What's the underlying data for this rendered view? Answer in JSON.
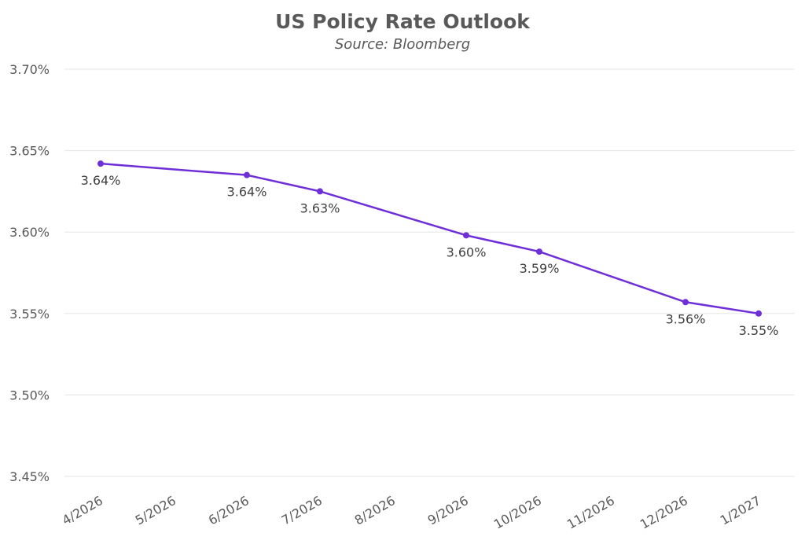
{
  "chart_data": {
    "type": "line",
    "title": "US Policy Rate Outlook",
    "subtitle": "Source: Bloomberg",
    "xlabel": "",
    "ylabel": "",
    "categories": [
      "4/2026",
      "5/2026",
      "6/2026",
      "7/2026",
      "8/2026",
      "9/2026",
      "10/2026",
      "11/2026",
      "12/2026",
      "1/2027"
    ],
    "series": [
      {
        "name": "US Policy Rate",
        "color": "#6f2fd8",
        "points": [
          {
            "x": "4/2026",
            "y": 3.642,
            "label": "3.64%"
          },
          {
            "x": "6/2026",
            "y": 3.635,
            "label": "3.64%"
          },
          {
            "x": "7/2026",
            "y": 3.625,
            "label": "3.63%"
          },
          {
            "x": "9/2026",
            "y": 3.598,
            "label": "3.60%"
          },
          {
            "x": "10/2026",
            "y": 3.588,
            "label": "3.59%"
          },
          {
            "x": "12/2026",
            "y": 3.557,
            "label": "3.56%"
          },
          {
            "x": "1/2027",
            "y": 3.55,
            "label": "3.55%"
          }
        ]
      }
    ],
    "ylim": [
      3.45,
      3.7
    ],
    "yticks": [
      3.45,
      3.5,
      3.55,
      3.6,
      3.65,
      3.7
    ],
    "ytick_labels": [
      "3.45%",
      "3.50%",
      "3.55%",
      "3.60%",
      "3.65%",
      "3.70%"
    ],
    "grid": true,
    "legend": "none"
  }
}
